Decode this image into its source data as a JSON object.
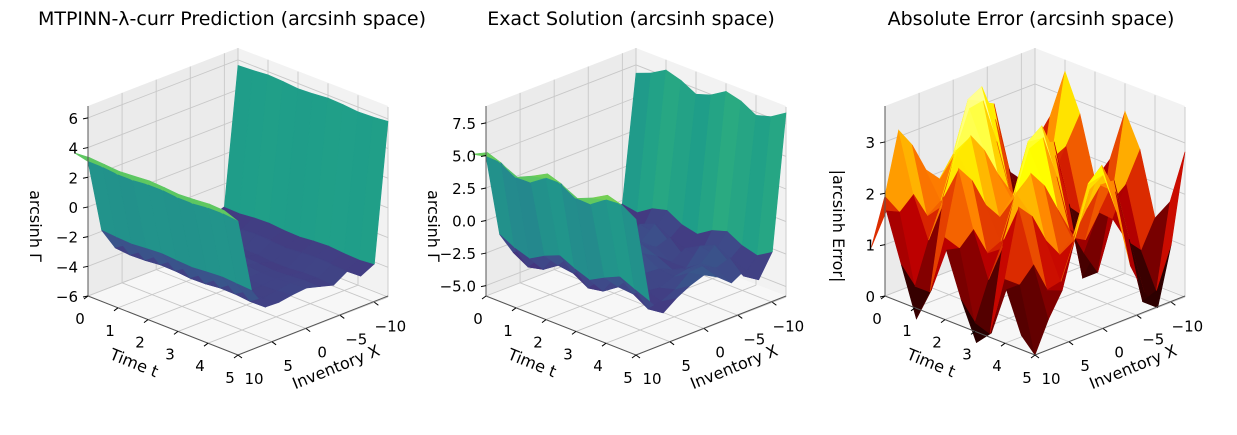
{
  "chart_data": [
    {
      "type": "surface3d",
      "title": "MTPINN-λ-curr Prediction (arcsinh space)",
      "xlabel": "Time t",
      "ylabel": "Inventory X",
      "zlabel": "arcsinh Γ",
      "t_ticks": [
        "0",
        "1",
        "2",
        "3",
        "4",
        "5"
      ],
      "x_ticks": [
        "10",
        "5",
        "0",
        "−5",
        "−10"
      ],
      "z_ticks": [
        "−6",
        "−4",
        "−2",
        "0",
        "2",
        "4",
        "6"
      ],
      "t_range": [
        0,
        5
      ],
      "x_range": [
        10,
        -12
      ],
      "z_range": [
        -6,
        6.8
      ],
      "colormap": "viridis",
      "grid": true,
      "surface": {
        "x": [
          12,
          10,
          8,
          6,
          4,
          2,
          0,
          -2,
          -4,
          -6,
          -8,
          -10,
          -12
        ],
        "profile": [
          4.0,
          3.0,
          -2.0,
          -3.5,
          -3.6,
          -3.5,
          -3.4,
          -3.6,
          -3.8,
          -3.2,
          -3.9,
          -3.5,
          5.7
        ],
        "t_variation": 0.25
      }
    },
    {
      "type": "surface3d",
      "title": "Exact Solution (arcsinh space)",
      "xlabel": "Time t",
      "ylabel": "Inventory X",
      "zlabel": "arcsinh Γ",
      "t_ticks": [
        "0",
        "1",
        "2",
        "3",
        "4",
        "5"
      ],
      "x_ticks": [
        "10",
        "5",
        "0",
        "−5",
        "−10"
      ],
      "z_ticks": [
        "−5.0",
        "−2.5",
        "0.0",
        "2.5",
        "5.0",
        "7.5"
      ],
      "t_range": [
        0,
        5
      ],
      "x_range": [
        10,
        -12
      ],
      "z_range": [
        -5.8,
        8.8
      ],
      "colormap": "viridis",
      "grid": true,
      "surface": {
        "x": [
          12,
          10,
          8,
          6,
          4,
          2,
          0,
          -2,
          -4,
          -6,
          -8,
          -10,
          -12
        ],
        "profile": [
          5.5,
          4.5,
          -2.0,
          -3.5,
          -3.2,
          -3.0,
          -2.6,
          -2.8,
          -3.2,
          -2.4,
          -3.8,
          -2.5,
          7.4
        ],
        "t_variation": 1.8
      }
    },
    {
      "type": "surface3d",
      "title": "Absolute Error (arcsinh space)",
      "xlabel": "Time t",
      "ylabel": "Inventory X",
      "zlabel": "|arcsinh Error|",
      "t_ticks": [
        "0",
        "1",
        "2",
        "3",
        "4",
        "5"
      ],
      "x_ticks": [
        "10",
        "5",
        "0",
        "−5",
        "−10"
      ],
      "z_ticks": [
        "0",
        "1",
        "2",
        "3"
      ],
      "t_range": [
        0,
        5
      ],
      "x_range": [
        10,
        -12
      ],
      "z_range": [
        0,
        3.7
      ],
      "colormap": "hot",
      "grid": true,
      "surface": {
        "x": [
          12,
          10,
          8,
          6,
          4,
          2,
          0,
          -2,
          -4,
          -6,
          -8,
          -10,
          -12
        ],
        "profile": [
          0.3,
          0.5,
          1.5,
          1.6,
          1.8,
          2.0,
          2.2,
          2.0,
          1.6,
          1.3,
          0.4,
          0.9,
          2.0
        ],
        "t_variation": 1.5
      }
    }
  ]
}
